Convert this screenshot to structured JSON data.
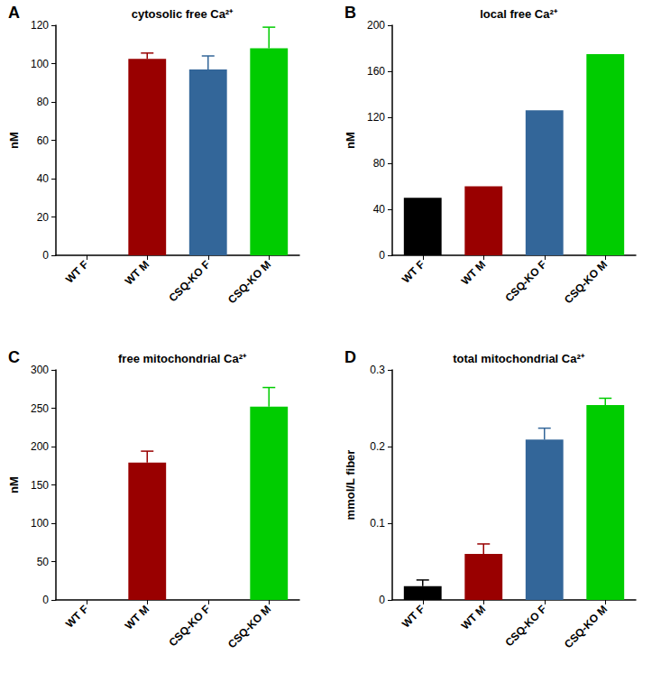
{
  "chart_data": [
    {
      "type": "bar",
      "panel_label": "A",
      "title": "cytosolic free Ca²⁺",
      "y_label": "nM",
      "categories": [
        "WT F",
        "WT M",
        "CSQ-KO F",
        "CSQ-KO M"
      ],
      "values": [
        null,
        102.5,
        97,
        108
      ],
      "errors": [
        null,
        3,
        7,
        11
      ],
      "colors": [
        "#000000",
        "#990000",
        "#336699",
        "#00cc00"
      ],
      "ylim": [
        0,
        120
      ],
      "yticks": [
        0,
        20,
        40,
        60,
        80,
        100,
        120
      ],
      "grid": false
    },
    {
      "type": "bar",
      "panel_label": "B",
      "title": "local free Ca²⁺",
      "y_label": "nM",
      "categories": [
        "WT F",
        "WT M",
        "CSQ-KO F",
        "CSQ-KO M"
      ],
      "values": [
        50,
        60,
        126,
        175
      ],
      "colors": [
        "#000000",
        "#990000",
        "#336699",
        "#00cc00"
      ],
      "ylim": [
        0,
        200
      ],
      "yticks": [
        0,
        40,
        80,
        120,
        160,
        200
      ],
      "grid": false
    },
    {
      "type": "bar",
      "panel_label": "C",
      "title": "free mitochondrial Ca²⁺",
      "y_label": "nM",
      "categories": [
        "WT F",
        "WT M",
        "CSQ-KO F",
        "CSQ-KO M"
      ],
      "values": [
        null,
        179,
        null,
        252
      ],
      "errors": [
        null,
        15,
        null,
        25
      ],
      "colors": [
        "#000000",
        "#990000",
        "#336699",
        "#00cc00"
      ],
      "ylim": [
        0,
        300
      ],
      "yticks": [
        0,
        50,
        100,
        150,
        200,
        250,
        300
      ],
      "grid": false
    },
    {
      "type": "bar",
      "panel_label": "D",
      "title": "total mitochondrial Ca²⁺",
      "y_label": "mmol/L fiber",
      "categories": [
        "WT F",
        "WT M",
        "CSQ-KO F",
        "CSQ-KO M"
      ],
      "values": [
        0.018,
        0.06,
        0.209,
        0.254
      ],
      "errors": [
        0.008,
        0.013,
        0.015,
        0.009
      ],
      "colors": [
        "#000000",
        "#990000",
        "#336699",
        "#00cc00"
      ],
      "ylim": [
        0,
        0.3
      ],
      "yticks": [
        0,
        0.1,
        0.2,
        0.3
      ],
      "grid": false
    }
  ]
}
